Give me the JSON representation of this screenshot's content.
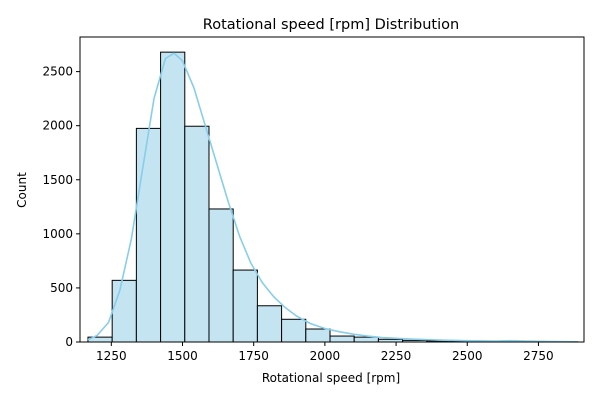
{
  "chart_data": {
    "type": "bar",
    "title": "Rotational speed [rpm] Distribution",
    "xlabel": "Rotational speed [rpm]",
    "ylabel": "Count",
    "xlim": [
      1140,
      2910
    ],
    "ylim": [
      0,
      2820
    ],
    "x_ticks": [
      1250,
      1500,
      1750,
      2000,
      2250,
      2500,
      2750
    ],
    "y_ticks": [
      0,
      500,
      1000,
      1500,
      2000,
      2500
    ],
    "bin_edges": [
      1168,
      1253,
      1338,
      1423,
      1508,
      1593,
      1678,
      1763,
      1848,
      1933,
      2018,
      2103,
      2188,
      2273,
      2358,
      2443,
      2528,
      2613,
      2698,
      2783,
      2868
    ],
    "counts": [
      45,
      570,
      1975,
      2680,
      1995,
      1230,
      665,
      335,
      210,
      120,
      55,
      45,
      25,
      15,
      10,
      8,
      5,
      8,
      3,
      2
    ],
    "kde": {
      "x": [
        1168,
        1200,
        1240,
        1280,
        1320,
        1360,
        1400,
        1440,
        1470,
        1500,
        1540,
        1580,
        1620,
        1660,
        1700,
        1740,
        1780,
        1820,
        1860,
        1900,
        1950,
        2000,
        2050,
        2100,
        2150,
        2200,
        2300,
        2400,
        2500,
        2600,
        2650,
        2700,
        2800,
        2890
      ],
      "y": [
        20,
        60,
        180,
        480,
        950,
        1600,
        2250,
        2620,
        2670,
        2600,
        2350,
        2000,
        1650,
        1300,
        980,
        730,
        550,
        420,
        320,
        240,
        170,
        125,
        95,
        72,
        55,
        42,
        28,
        18,
        12,
        8,
        12,
        9,
        4,
        2
      ]
    },
    "bar_color": "#c4e4f2",
    "bar_edge_color": "#000000",
    "kde_color": "#87ceeb",
    "grid": false,
    "legend": "none"
  }
}
